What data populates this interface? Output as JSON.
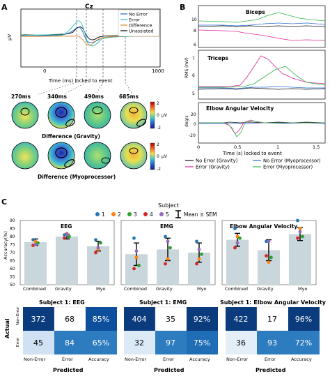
{
  "panel_labels": {
    "a": "A",
    "b": "B",
    "c": "C"
  },
  "panel_a": {
    "electrode": "Cz",
    "ylabel": "μV",
    "xlabel": "Time (ms) locked to event",
    "xticks": [
      "0",
      "1000"
    ],
    "legend": [
      "No Error",
      "Error",
      "Difference",
      "Unassisted"
    ],
    "colors": {
      "no_error": "#1f5fbf",
      "error": "#27c2b8",
      "difference": "#e08a2a",
      "unassisted": "#000000"
    },
    "topo_times": [
      "270ms",
      "340ms",
      "490ms",
      "685ms"
    ],
    "topo_row_labels": [
      "Difference (Gravity)",
      "Difference (Myoprocessor)"
    ],
    "colorbar_ticks": [
      "2",
      "0",
      "-2"
    ],
    "colorbar_unit": "μV"
  },
  "panel_b": {
    "subplot_titles": [
      "Biceps",
      "Triceps",
      "Elbow Angular Velocity"
    ],
    "ylabels": [
      "RMS (mV)",
      "RMS (mV)",
      "deg/s"
    ],
    "xlabel": "Time (s) locked to event",
    "xticks": [
      "0",
      "0.5",
      "1",
      "1.5"
    ],
    "legend": [
      "No Error (Gravity)",
      "No Error (Myoprocessor)",
      "Error (Gravity)",
      "Error (Myoprocessor)"
    ],
    "colors": {
      "noerr_grav": "#111111",
      "noerr_myo": "#2a6fd6",
      "err_grav": "#e0249a",
      "err_myo": "#2fb34a"
    }
  },
  "panel_c": {
    "subject_legend_title": "Subject",
    "subjects": [
      "1",
      "2",
      "3",
      "4",
      "5"
    ],
    "subject_colors": [
      "#1f77b4",
      "#ff7f0e",
      "#2ca02c",
      "#d62728",
      "#9467bd"
    ],
    "mean_sem_label": "Mean ± SEM",
    "ylabel": "Accuracy(%)",
    "yticks": [
      "50",
      "55",
      "60",
      "65",
      "70",
      "75",
      "80",
      "85",
      "90"
    ],
    "chart_data": [
      {
        "type": "bar",
        "title": "EEG",
        "categories": [
          "Combined",
          "Gravity",
          "Myo"
        ],
        "values": [
          76.5,
          80,
          74
        ],
        "sem": [
          2,
          1.5,
          3
        ],
        "ylim": [
          50,
          90
        ],
        "points": [
          [
            78,
            77,
            76,
            74.5,
            75
          ],
          [
            81,
            82,
            80,
            79,
            81.5
          ],
          [
            78,
            72,
            76,
            70,
            73
          ]
        ]
      },
      {
        "type": "bar",
        "title": "EMG",
        "categories": [
          "Combined",
          "Gravity",
          "Myo"
        ],
        "values": [
          69,
          72,
          70
        ],
        "sem": [
          7,
          7,
          6
        ],
        "ylim": [
          50,
          90
        ],
        "points": [
          [
            79,
            67,
            62,
            60,
            71
          ],
          [
            80,
            66,
            73,
            63,
            77
          ],
          [
            77,
            66,
            69,
            63,
            72
          ]
        ]
      },
      {
        "type": "bar",
        "title": "Elbow Angular Velocity",
        "categories": [
          "Combined",
          "Gravity",
          "Myo"
        ],
        "values": [
          78,
          71.5,
          81.5
        ],
        "sem": [
          4,
          6.5,
          4
        ],
        "ylim": [
          50,
          90
        ],
        "points": [
          [
            85,
            80,
            79,
            73,
            76
          ],
          [
            77,
            64,
            67,
            68,
            77
          ],
          [
            90,
            85,
            80,
            79,
            83
          ]
        ]
      }
    ]
  },
  "confusion": {
    "actual_label": "Actual",
    "predicted_label": "Predicted",
    "row_labels": [
      "Non-Error",
      "Error"
    ],
    "col_labels": [
      "Non-Error",
      "Error",
      "Accuracy"
    ],
    "matrices": [
      {
        "title": "Subject 1: EEG",
        "cells": [
          [
            "372",
            "68",
            "85%"
          ],
          [
            "45",
            "84",
            "65%"
          ]
        ]
      },
      {
        "title": "Subject 1: EMG",
        "cells": [
          [
            "404",
            "35",
            "92%"
          ],
          [
            "32",
            "97",
            "75%"
          ]
        ]
      },
      {
        "title": "Subject 1: Elbow Angular Velocity",
        "cells": [
          [
            "422",
            "17",
            "96%"
          ],
          [
            "36",
            "93",
            "72%"
          ]
        ]
      }
    ]
  }
}
